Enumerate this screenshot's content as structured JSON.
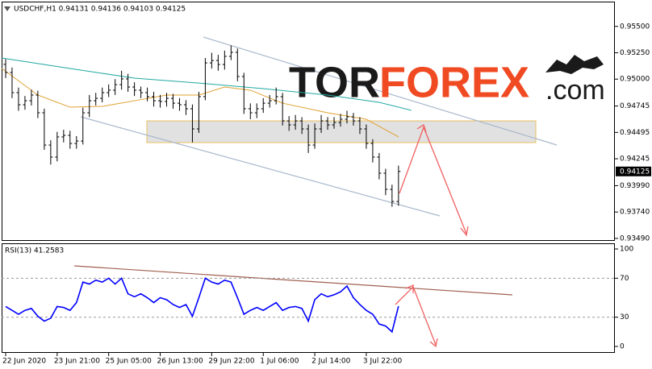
{
  "chart_data": [
    {
      "type": "ohlc",
      "title": "USDCHF,H1  0.94131 0.94136 0.94103 0.94125",
      "color": "#000000",
      "open": [
        0.9514,
        0.95063,
        0.94872,
        0.94757,
        0.94795,
        0.94849,
        0.94681,
        0.94375,
        0.94261,
        0.94452,
        0.94467,
        0.9439,
        0.94413,
        0.94681,
        0.94795,
        0.94818,
        0.94872,
        0.94895,
        0.94948,
        0.95002,
        0.94925,
        0.94895,
        0.94872,
        0.94834,
        0.94795,
        0.94788,
        0.94818,
        0.94772,
        0.94757,
        0.94719,
        0.94528,
        0.94834,
        0.95154,
        0.95177,
        0.95139,
        0.95216,
        0.95254,
        0.95025,
        0.94719,
        0.94681,
        0.94719,
        0.94772,
        0.94795,
        0.94834,
        0.94604,
        0.94566,
        0.94604,
        0.94528,
        0.94375,
        0.94528,
        0.94604,
        0.94566,
        0.94589,
        0.9462,
        0.94643,
        0.94604,
        0.94528,
        0.9439,
        0.94261,
        0.94108,
        0.93955,
        0.9384
      ],
      "high": [
        0.9519,
        0.9511,
        0.9492,
        0.9484,
        0.949,
        0.9489,
        0.9472,
        0.9442,
        0.945,
        0.9452,
        0.9451,
        0.9446,
        0.9473,
        0.9485,
        0.9487,
        0.9492,
        0.9495,
        0.95,
        0.9508,
        0.9505,
        0.9497,
        0.9493,
        0.9492,
        0.9488,
        0.9485,
        0.9487,
        0.9486,
        0.9482,
        0.948,
        0.9476,
        0.9488,
        0.952,
        0.9525,
        0.9523,
        0.9527,
        0.9532,
        0.9529,
        0.9506,
        0.9477,
        0.9477,
        0.9482,
        0.9485,
        0.9492,
        0.9487,
        0.9465,
        0.9466,
        0.9464,
        0.9457,
        0.9458,
        0.9466,
        0.9464,
        0.9464,
        0.9467,
        0.947,
        0.9468,
        0.9464,
        0.9457,
        0.9443,
        0.943,
        0.9415,
        0.94,
        0.9418
      ],
      "low": [
        0.9501,
        0.9482,
        0.947,
        0.9471,
        0.9475,
        0.9463,
        0.9433,
        0.9419,
        0.9422,
        0.944,
        0.9434,
        0.9434,
        0.9438,
        0.9464,
        0.9475,
        0.9478,
        0.9483,
        0.9485,
        0.949,
        0.9488,
        0.9484,
        0.9482,
        0.9479,
        0.9474,
        0.9473,
        0.9474,
        0.9472,
        0.947,
        0.9466,
        0.944,
        0.9449,
        0.948,
        0.951,
        0.9508,
        0.9509,
        0.9518,
        0.9498,
        0.9467,
        0.9462,
        0.9463,
        0.9468,
        0.9473,
        0.9476,
        0.9456,
        0.9451,
        0.9452,
        0.9448,
        0.943,
        0.9434,
        0.9449,
        0.9452,
        0.9453,
        0.9455,
        0.9458,
        0.9456,
        0.9448,
        0.9434,
        0.9421,
        0.9405,
        0.939,
        0.9379,
        0.938
      ],
      "close": [
        0.95063,
        0.94872,
        0.94757,
        0.94795,
        0.94849,
        0.94681,
        0.94375,
        0.94261,
        0.94452,
        0.94467,
        0.9439,
        0.94413,
        0.94681,
        0.94795,
        0.94818,
        0.94872,
        0.94895,
        0.94948,
        0.95002,
        0.94925,
        0.94895,
        0.94872,
        0.94834,
        0.94795,
        0.94788,
        0.94818,
        0.94772,
        0.94757,
        0.94719,
        0.94528,
        0.94834,
        0.95154,
        0.95177,
        0.95139,
        0.95216,
        0.95254,
        0.95025,
        0.94719,
        0.94681,
        0.94719,
        0.94772,
        0.94795,
        0.94834,
        0.94604,
        0.94566,
        0.94604,
        0.94528,
        0.94375,
        0.94528,
        0.94604,
        0.94566,
        0.94589,
        0.9462,
        0.94643,
        0.94604,
        0.94528,
        0.9439,
        0.94261,
        0.94108,
        0.93955,
        0.9384,
        0.94125
      ],
      "series": [
        {
          "color": "#20a8a0",
          "x": [
            -0.6,
            10,
            20,
            30,
            40,
            50,
            58,
            63
          ],
          "values": [
            0.952,
            0.95101,
            0.95009,
            0.94963,
            0.9491,
            0.94849,
            0.9478,
            0.94704
          ]
        },
        {
          "color": "#e0a030",
          "x": [
            -0.6,
            5,
            10,
            15,
            20,
            25,
            30,
            34,
            38,
            43,
            50,
            56,
            61
          ],
          "values": [
            0.95101,
            0.94849,
            0.94734,
            0.94742,
            0.94795,
            0.94849,
            0.94849,
            0.94925,
            0.94895,
            0.94772,
            0.94681,
            0.9462,
            0.94452
          ]
        }
      ],
      "last_price": 0.94125,
      "xlim": [
        -0.625,
        94.6
      ],
      "ylim": [
        0.93474,
        0.95735
      ],
      "yticks": [
        {
          "value": 0.955,
          "label": "0.95500"
        },
        {
          "value": 0.9525,
          "label": "0.95250"
        },
        {
          "value": 0.95,
          "label": "0.95000"
        },
        {
          "value": 0.94745,
          "label": "0.94745"
        },
        {
          "value": 0.94495,
          "label": "0.94495"
        },
        {
          "value": 0.94245,
          "label": "0.94245"
        },
        {
          "value": 0.9399,
          "label": "0.93990"
        },
        {
          "value": 0.9374,
          "label": "0.93740"
        },
        {
          "value": 0.9349,
          "label": "0.93490"
        }
      ]
    },
    {
      "type": "line",
      "title": "RSI(13) 41.2583",
      "color": "#0000ff",
      "values": [
        41,
        37,
        33,
        37,
        39,
        31,
        26,
        29,
        41,
        40,
        37,
        45,
        66,
        64,
        68,
        66,
        70,
        64,
        70,
        54,
        51,
        54,
        50,
        45,
        50,
        48,
        43,
        40,
        43,
        31,
        50,
        70,
        66,
        64,
        68,
        66,
        50,
        33,
        37,
        40,
        37,
        41,
        45,
        37,
        40,
        41,
        39,
        26,
        48,
        54,
        51,
        53,
        56,
        62,
        50,
        43,
        37,
        33,
        23,
        21,
        15,
        41.2583
      ],
      "levels": [
        30,
        70
      ],
      "xlim": [
        -0.625,
        94.6
      ],
      "ylim": [
        -6.6,
        105.8
      ],
      "yticks": [
        0,
        30,
        70,
        100
      ],
      "xticks": [
        {
          "value": 0,
          "label": "22 Jun 2020"
        },
        {
          "value": 8,
          "label": "23 Jun 21:00"
        },
        {
          "value": 16,
          "label": "25 Jun 05:00"
        },
        {
          "value": 24,
          "label": "26 Jun 13:00"
        },
        {
          "value": 32,
          "label": "29 Jun 22:00"
        },
        {
          "value": 40,
          "label": "1 Jul 06:00"
        },
        {
          "value": 48,
          "label": "2 Jul 14:00"
        },
        {
          "value": 56,
          "label": "3 Jul 22:00"
        }
      ]
    }
  ],
  "logo": {
    "part1": "TOR",
    "part2": "FOREX",
    "part3": ".com"
  }
}
